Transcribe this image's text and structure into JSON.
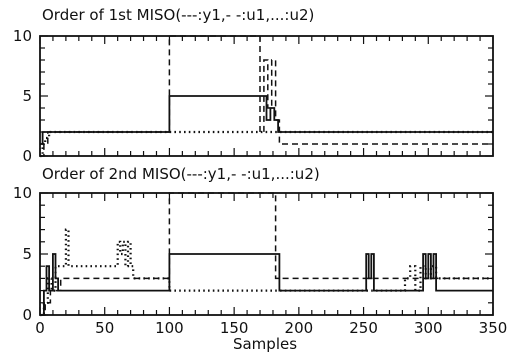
{
  "chart_data": [
    {
      "type": "line",
      "title": "Order of 1st MISO(---:y1,- -:u1,...:u2)",
      "xlim": [
        0,
        350
      ],
      "ylim": [
        0,
        10
      ],
      "xticks": [
        0,
        50,
        100,
        150,
        200,
        250,
        300,
        350
      ],
      "yticks": [
        0,
        5,
        10
      ],
      "show_x_tick_labels": false,
      "xlabel": "",
      "series": [
        {
          "key": "y1",
          "x": [
            0,
            2,
            2,
            100,
            100,
            175,
            175,
            178,
            178,
            181,
            181,
            184,
            184,
            350
          ],
          "y": [
            1,
            1,
            2,
            2,
            5,
            5,
            3,
            3,
            4,
            4,
            3,
            3,
            2,
            2
          ]
        },
        {
          "key": "u1",
          "x": [
            0,
            3,
            3,
            6,
            6,
            97,
            97,
            100,
            100,
            170,
            170,
            173,
            173,
            176,
            176,
            179,
            179,
            182,
            182,
            185,
            185,
            190,
            190,
            350
          ],
          "y": [
            0,
            0,
            1,
            1,
            2,
            2,
            2,
            2,
            10,
            10,
            2,
            2,
            8,
            8,
            4,
            4,
            8,
            8,
            3,
            3,
            1,
            1,
            1,
            1
          ]
        },
        {
          "key": "u2",
          "x": [
            0,
            2,
            2,
            4,
            4,
            7,
            7,
            350
          ],
          "y": [
            0,
            0,
            1,
            1,
            1.5,
            1.5,
            2,
            2
          ]
        }
      ]
    },
    {
      "type": "line",
      "title": "Order of 2nd MISO(---:y1,- -:u1,...:u2)",
      "xlim": [
        0,
        350
      ],
      "ylim": [
        0,
        10
      ],
      "xticks": [
        0,
        50,
        100,
        150,
        200,
        250,
        300,
        350
      ],
      "yticks": [
        0,
        5,
        10
      ],
      "show_x_tick_labels": true,
      "xlabel": "Samples",
      "series": [
        {
          "key": "y1",
          "x": [
            0,
            3,
            3,
            5,
            5,
            7,
            7,
            10,
            10,
            12,
            12,
            14,
            14,
            100,
            100,
            185,
            185,
            252,
            252,
            254,
            254,
            256,
            256,
            258,
            258,
            260,
            260,
            296,
            296,
            298,
            298,
            300,
            300,
            302,
            302,
            304,
            304,
            306,
            306,
            350
          ],
          "y": [
            0,
            0,
            2,
            2,
            4,
            4,
            2,
            2,
            5,
            5,
            3,
            3,
            2,
            2,
            5,
            5,
            2,
            2,
            5,
            5,
            3,
            3,
            5,
            5,
            2,
            2,
            2,
            2,
            5,
            5,
            3,
            3,
            5,
            5,
            3,
            3,
            5,
            5,
            2,
            2
          ]
        },
        {
          "key": "u1",
          "x": [
            0,
            4,
            4,
            8,
            8,
            12,
            12,
            16,
            16,
            98,
            98,
            100,
            100,
            182,
            182,
            185,
            185,
            350
          ],
          "y": [
            0,
            0,
            1,
            1,
            2,
            2,
            2,
            2,
            3,
            3,
            3,
            3,
            10,
            10,
            3,
            3,
            3,
            3
          ]
        },
        {
          "key": "u2",
          "x": [
            0,
            3,
            3,
            6,
            6,
            9,
            9,
            12,
            12,
            20,
            20,
            22,
            22,
            24,
            24,
            60,
            60,
            62,
            62,
            64,
            64,
            66,
            66,
            68,
            68,
            70,
            70,
            72,
            72,
            74,
            74,
            78,
            78,
            80,
            80,
            100,
            100,
            282,
            282,
            286,
            286,
            290,
            290,
            294,
            294,
            298,
            298,
            302,
            302,
            306,
            306,
            350
          ],
          "y": [
            0,
            0,
            1,
            1,
            3,
            3,
            2,
            2,
            4,
            4,
            7,
            7,
            4,
            4,
            4,
            4,
            6,
            6,
            5,
            5,
            6,
            6,
            4,
            4,
            6,
            6,
            4,
            4,
            3,
            3,
            3,
            3,
            3,
            3,
            3,
            3,
            2,
            2,
            3,
            3,
            4,
            4,
            2,
            2,
            4,
            4,
            3,
            3,
            4,
            4,
            3,
            3
          ]
        }
      ]
    }
  ]
}
